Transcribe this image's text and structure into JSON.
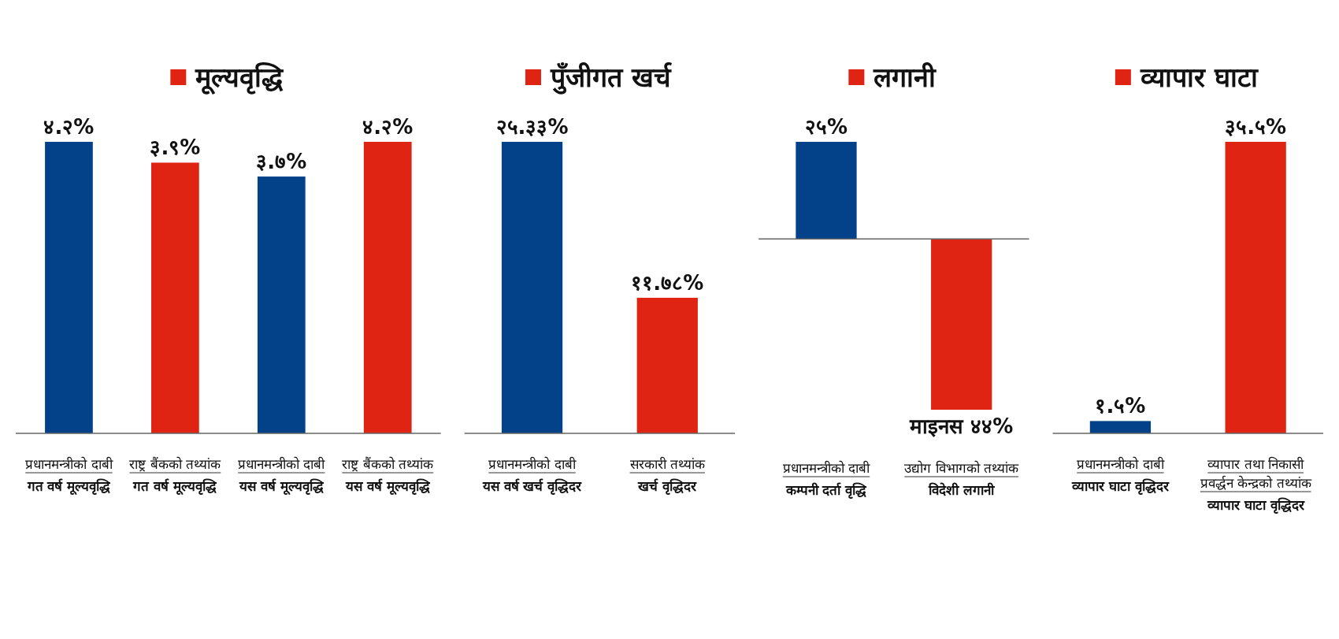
{
  "chart_data": [
    {
      "type": "bar",
      "title": "मूल्यवृद्धि",
      "categories": [
        "प्रधानमन्त्रीको दाबी\nगत वर्ष मूल्यवृद्धि",
        "राष्ट्र बैंकको तथ्यांक\nगत वर्ष मूल्यवृद्धि",
        "प्रधानमन्त्रीको दाबी\nयस वर्ष मूल्यवृद्धि",
        "राष्ट्र बैंकको तथ्यांक\nयस वर्ष मूल्यवृद्धि"
      ],
      "values": [
        4.2,
        3.9,
        3.7,
        4.2
      ],
      "colors": [
        "#034289",
        "#e02414",
        "#034289",
        "#e02414"
      ],
      "value_labels": [
        "४.२%",
        "३.९%",
        "३.७%",
        "४.२%"
      ]
    },
    {
      "type": "bar",
      "title": "पुँजीगत खर्च",
      "categories": [
        "प्रधानमन्त्रीको दाबी\nयस वर्ष खर्च वृद्धिदर",
        "सरकारी तथ्यांक\nखर्च वृद्धिदर"
      ],
      "values": [
        25.33,
        11.78
      ],
      "colors": [
        "#034289",
        "#e02414"
      ],
      "value_labels": [
        "२५.३३%",
        "११.७८%"
      ]
    },
    {
      "type": "bar",
      "title": "लगानी",
      "categories": [
        "प्रधानमन्त्रीको दाबी\nकम्पनी दर्ता वृद्धि",
        "उद्योग विभागको तथ्यांक\nविदेशी लगानी"
      ],
      "values": [
        25,
        -44
      ],
      "colors": [
        "#034289",
        "#e02414"
      ],
      "value_labels": [
        "२५%",
        "माइनस ४४%"
      ]
    },
    {
      "type": "bar",
      "title": "व्यापार घाटा",
      "categories": [
        "प्रधानमन्त्रीको दाबी\nव्यापार घाटा वृद्धिदर",
        "व्यापार तथा निकासी प्रवर्द्धन केन्द्रको तथ्यांक\nव्यापार घाटा वृद्धिदर"
      ],
      "values": [
        1.5,
        35.5
      ],
      "colors": [
        "#034289",
        "#e02414"
      ],
      "value_labels": [
        "१.५%",
        "३५.५%"
      ]
    }
  ]
}
